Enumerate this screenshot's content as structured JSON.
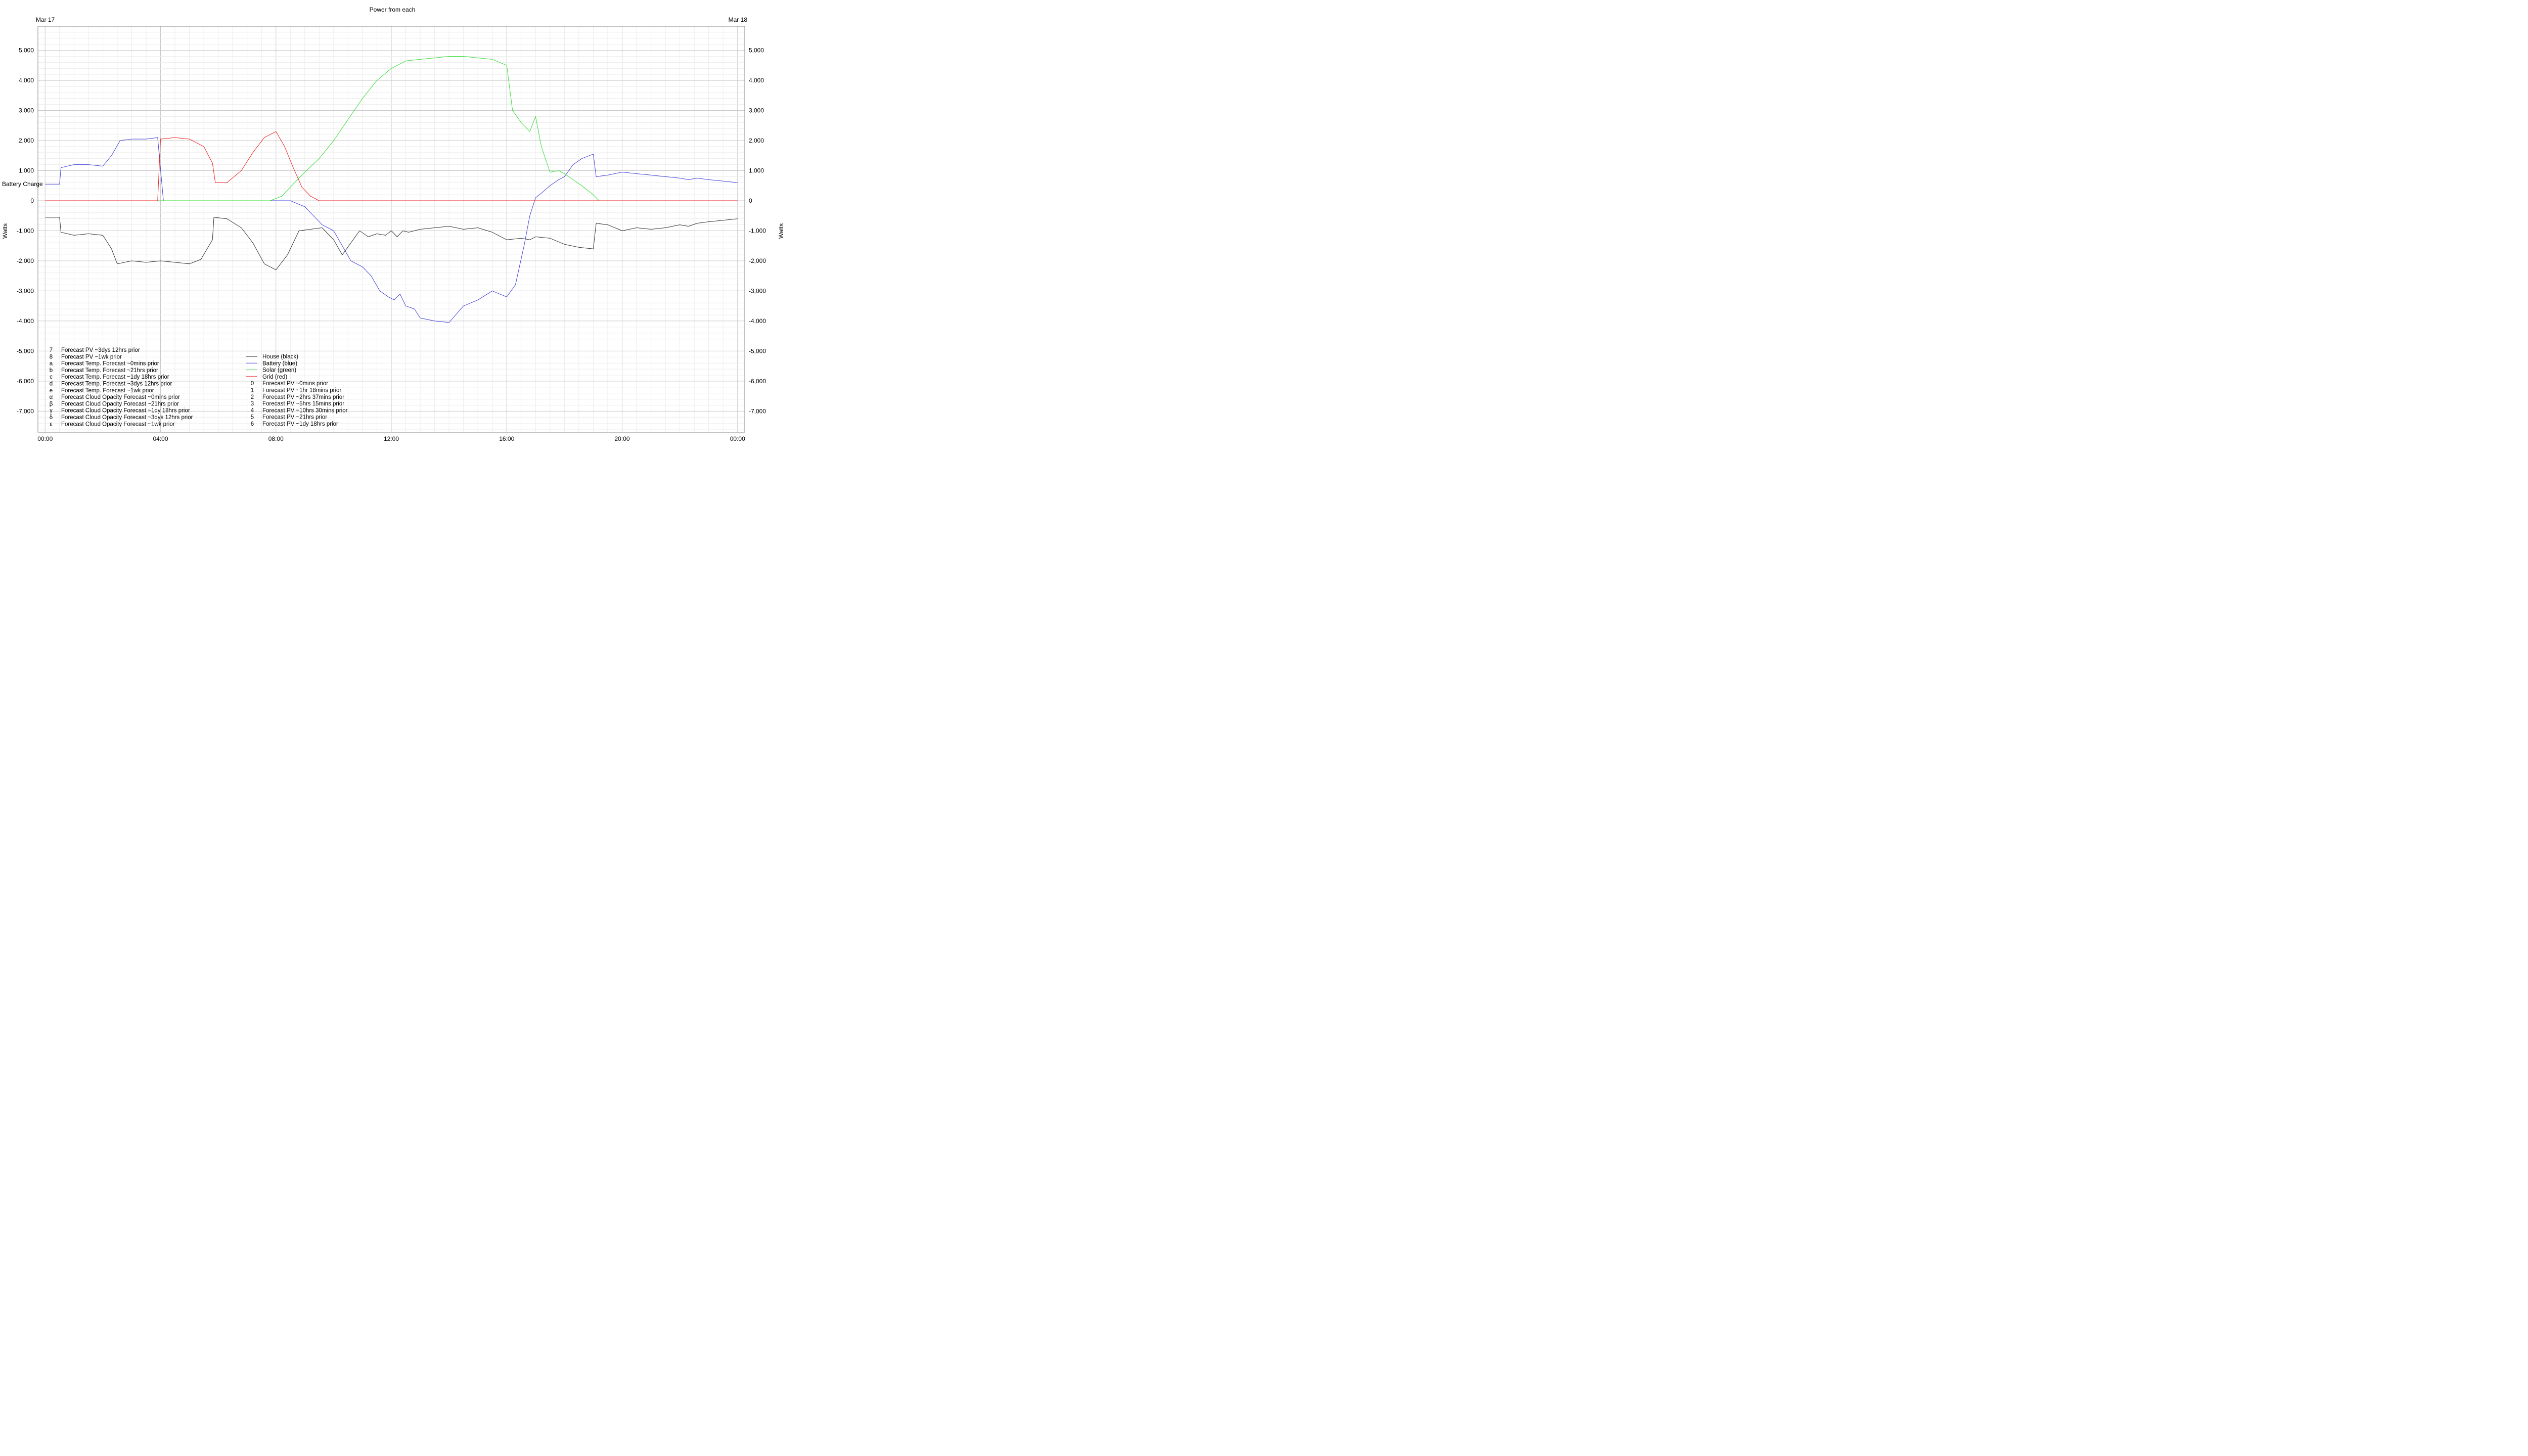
{
  "chart_data": {
    "type": "line",
    "title": "Power from each",
    "date_left": "Mar 17",
    "date_right": "Mar 18",
    "ylabel_left": "Watts",
    "ylabel_right": "Watts",
    "battery_charge_label": "Battery Charge",
    "x_ticks": [
      "00:00",
      "04:00",
      "08:00",
      "12:00",
      "16:00",
      "20:00",
      "00:00"
    ],
    "xlim_hours": [
      -0.25,
      24.25
    ],
    "ylim": [
      -7700,
      5800
    ],
    "y_ticks": [
      5000,
      4000,
      3000,
      2000,
      1000,
      0,
      -1000,
      -2000,
      -3000,
      -4000,
      -5000,
      -6000,
      -7000
    ],
    "y_tick_labels": [
      "5,000",
      "4,000",
      "3,000",
      "2,000",
      "1,000",
      "0",
      "-1,000",
      "-2,000",
      "-3,000",
      "-4,000",
      "-5,000",
      "-6,000",
      "-7,000"
    ],
    "grid": true,
    "legend_left": [
      {
        "sym": "7",
        "label": "Forecast PV ~3dys 12hrs prior",
        "color": "#bbbbbb"
      },
      {
        "sym": "8",
        "label": "Forecast PV ~1wk prior",
        "color": "#bbbbbb"
      },
      {
        "sym": "a",
        "label": "Forecast Temp. Forecast ~0mins prior",
        "color": "#c8b8f0"
      },
      {
        "sym": "b",
        "label": "Forecast Temp. Forecast ~21hrs prior",
        "color": "#c8b8f0"
      },
      {
        "sym": "c",
        "label": "Forecast Temp. Forecast ~1dy 18hrs prior",
        "color": "#c8b8f0"
      },
      {
        "sym": "d",
        "label": "Forecast Temp. Forecast ~3dys 12hrs prior",
        "color": "#c8b8f0"
      },
      {
        "sym": "e",
        "label": "Forecast Temp. Forecast ~1wk prior",
        "color": "#c8b8f0"
      },
      {
        "sym": "α",
        "label": "Forecast Cloud Opacity Forecast ~0mins prior",
        "color": "#cccccc"
      },
      {
        "sym": "β",
        "label": "Forecast Cloud Opacity Forecast ~21hrs prior",
        "color": "#cccccc"
      },
      {
        "sym": "γ",
        "label": "Forecast Cloud Opacity Forecast ~1dy 18hrs prior",
        "color": "#cccccc"
      },
      {
        "sym": "δ",
        "label": "Forecast Cloud Opacity Forecast ~3dys 12hrs prior",
        "color": "#cccccc"
      },
      {
        "sym": "ε",
        "label": "Forecast Cloud Opacity Forecast ~1wk prior",
        "color": "#cccccc"
      }
    ],
    "legend_right": [
      {
        "sym": "",
        "label": "House (black)",
        "color": "#333333"
      },
      {
        "sym": "",
        "label": "Battery (blue)",
        "color": "#4444dd"
      },
      {
        "sym": "",
        "label": "Solar (green)",
        "color": "#33dd33"
      },
      {
        "sym": "",
        "label": "Grid (red)",
        "color": "#ee2222"
      },
      {
        "sym": "0",
        "label": "Forecast PV ~0mins prior",
        "color": "#bbbbbb"
      },
      {
        "sym": "1",
        "label": "Forecast PV ~1hr 18mins prior",
        "color": "#bbbbbb"
      },
      {
        "sym": "2",
        "label": "Forecast PV ~2hrs 37mins prior",
        "color": "#bbbbbb"
      },
      {
        "sym": "3",
        "label": "Forecast PV ~5hrs 15mins prior",
        "color": "#bbbbbb"
      },
      {
        "sym": "4",
        "label": "Forecast PV ~10hrs 30mins prior",
        "color": "#bbbbbb"
      },
      {
        "sym": "5",
        "label": "Forecast PV ~21hrs prior",
        "color": "#bbbbbb"
      },
      {
        "sym": "6",
        "label": "Forecast PV ~1dy 18hrs prior",
        "color": "#bbbbbb"
      }
    ],
    "series": [
      {
        "name": "House (black)",
        "color": "#333333",
        "x": [
          0,
          0.5,
          0.55,
          1.0,
          1.5,
          2.0,
          2.3,
          2.5,
          3.0,
          3.5,
          4.0,
          4.5,
          5.0,
          5.4,
          5.8,
          5.85,
          6.3,
          6.8,
          7.2,
          7.6,
          8.0,
          8.4,
          8.8,
          9.2,
          9.6,
          10.0,
          10.3,
          10.6,
          10.9,
          11.2,
          11.5,
          11.8,
          12.0,
          12.2,
          12.4,
          12.6,
          13.0,
          13.5,
          14.0,
          14.5,
          15.0,
          15.5,
          16.0,
          16.5,
          16.8,
          17.0,
          17.5,
          18.0,
          18.5,
          19.0,
          19.1,
          19.5,
          20.0,
          20.5,
          21.0,
          21.5,
          22.0,
          22.3,
          22.6,
          23.0,
          23.5,
          24.0
        ],
        "y": [
          -550,
          -550,
          -1050,
          -1150,
          -1100,
          -1150,
          -1600,
          -2100,
          -2000,
          -2050,
          -2000,
          -2050,
          -2100,
          -1950,
          -1300,
          -550,
          -600,
          -900,
          -1400,
          -2100,
          -2300,
          -1800,
          -1000,
          -950,
          -900,
          -1300,
          -1800,
          -1400,
          -1000,
          -1200,
          -1100,
          -1150,
          -1000,
          -1200,
          -1000,
          -1050,
          -950,
          -900,
          -850,
          -950,
          -900,
          -1050,
          -1300,
          -1250,
          -1300,
          -1200,
          -1250,
          -1450,
          -1550,
          -1600,
          -750,
          -800,
          -1000,
          -900,
          -950,
          -900,
          -800,
          -850,
          -750,
          -700,
          -650,
          -600
        ]
      },
      {
        "name": "Battery (blue)",
        "color": "#4444dd",
        "x": [
          0,
          0.5,
          0.55,
          1.0,
          1.5,
          2.0,
          2.3,
          2.6,
          3.0,
          3.5,
          3.9,
          4.1,
          5.0,
          6.0,
          7.0,
          8.0,
          8.5,
          9.0,
          9.3,
          9.6,
          10.0,
          10.3,
          10.6,
          11.0,
          11.3,
          11.6,
          11.9,
          12.1,
          12.3,
          12.5,
          12.8,
          13.0,
          13.5,
          14.0,
          14.5,
          15.0,
          15.5,
          16.0,
          16.3,
          16.6,
          16.8,
          17.0,
          17.2,
          17.5,
          17.8,
          18.0,
          18.3,
          18.6,
          19.0,
          19.1,
          19.5,
          20.0,
          20.5,
          21.0,
          21.5,
          22.0,
          22.3,
          22.6,
          23.0,
          23.5,
          24.0
        ],
        "y": [
          550,
          550,
          1100,
          1200,
          1200,
          1150,
          1500,
          2000,
          2050,
          2050,
          2100,
          0,
          0,
          0,
          0,
          0,
          0,
          -200,
          -500,
          -800,
          -1000,
          -1500,
          -2000,
          -2200,
          -2500,
          -3000,
          -3200,
          -3300,
          -3100,
          -3500,
          -3600,
          -3900,
          -4000,
          -4050,
          -3500,
          -3300,
          -3000,
          -3200,
          -2800,
          -1500,
          -500,
          100,
          250,
          500,
          700,
          800,
          1200,
          1400,
          1550,
          800,
          850,
          950,
          900,
          850,
          800,
          750,
          700,
          750,
          700,
          650,
          600
        ]
      },
      {
        "name": "Solar (green)",
        "color": "#33dd33",
        "x": [
          0,
          7.8,
          8.2,
          8.5,
          9.0,
          9.5,
          10.0,
          10.5,
          11.0,
          11.5,
          12.0,
          12.5,
          13.0,
          13.5,
          14.0,
          14.5,
          15.0,
          15.5,
          16.0,
          16.2,
          16.5,
          16.8,
          17.0,
          17.2,
          17.5,
          17.8,
          18.0,
          18.3,
          18.6,
          19.0,
          19.2,
          24.0
        ],
        "y": [
          0,
          0,
          150,
          450,
          950,
          1400,
          2000,
          2700,
          3400,
          4000,
          4400,
          4650,
          4700,
          4750,
          4800,
          4800,
          4750,
          4700,
          4500,
          3000,
          2600,
          2300,
          2800,
          1800,
          950,
          1000,
          900,
          700,
          500,
          200,
          0,
          0
        ]
      },
      {
        "name": "Grid (red)",
        "color": "#ee2222",
        "x": [
          0,
          3.9,
          4.0,
          4.5,
          5.0,
          5.5,
          5.8,
          5.9,
          6.3,
          6.8,
          7.2,
          7.6,
          8.0,
          8.3,
          8.6,
          8.9,
          9.2,
          9.5,
          24.0
        ],
        "y": [
          0,
          0,
          2050,
          2100,
          2050,
          1800,
          1250,
          600,
          600,
          1000,
          1600,
          2100,
          2300,
          1800,
          1100,
          450,
          150,
          0,
          0
        ]
      }
    ]
  }
}
